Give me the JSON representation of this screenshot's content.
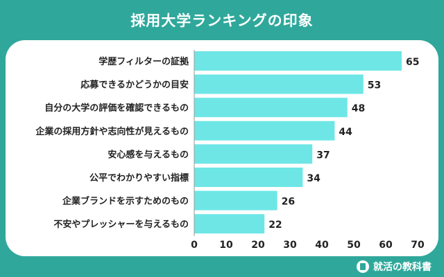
{
  "header": {
    "title": "採用大学ランキングの印象"
  },
  "brand": {
    "name": "就活の教科書"
  },
  "colors": {
    "background": "#2fa89b",
    "bar": "#6ee6e6",
    "axis": "#999999",
    "text": "#222222"
  },
  "chart_data": {
    "type": "bar",
    "orientation": "horizontal",
    "categories": [
      "学歴フィルターの証拠",
      "応募できるかどうかの目安",
      "自分の大学の評価を確認できるもの",
      "企業の採用方針や志向性が見えるもの",
      "安心感を与えるもの",
      "公平でわかりやすい指標",
      "企業ブランドを示すためのもの",
      "不安やプレッシャーを与えるもの"
    ],
    "values": [
      65,
      53,
      48,
      44,
      37,
      34,
      26,
      22
    ],
    "xlim": [
      0,
      70
    ],
    "xticks": [
      0,
      10,
      20,
      30,
      40,
      50,
      60,
      70
    ],
    "title": "採用大学ランキングの印象",
    "xlabel": "",
    "ylabel": "",
    "grid": false,
    "data_labels": true
  }
}
